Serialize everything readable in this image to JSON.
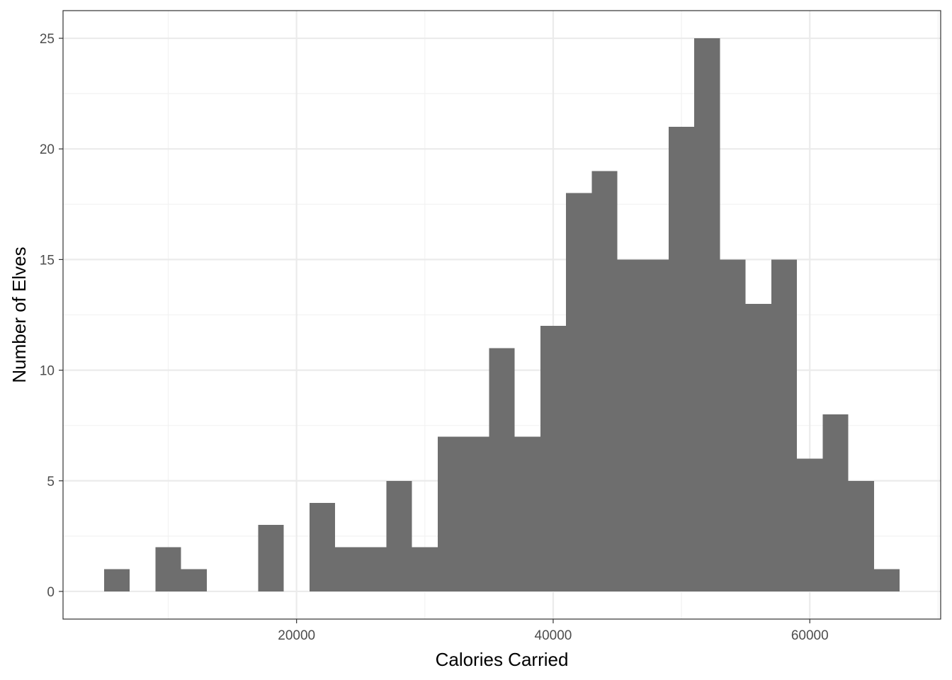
{
  "chart_data": {
    "type": "bar",
    "subtype": "histogram",
    "title": "",
    "xlabel": "Calories Carried",
    "ylabel": "Number of Elves",
    "bin_width": 2000,
    "bins": [
      {
        "x_start": 5000,
        "x_end": 7000,
        "count": 1
      },
      {
        "x_start": 7000,
        "x_end": 9000,
        "count": 0
      },
      {
        "x_start": 9000,
        "x_end": 11000,
        "count": 2
      },
      {
        "x_start": 11000,
        "x_end": 13000,
        "count": 1
      },
      {
        "x_start": 13000,
        "x_end": 15000,
        "count": 0
      },
      {
        "x_start": 15000,
        "x_end": 17000,
        "count": 0
      },
      {
        "x_start": 17000,
        "x_end": 19000,
        "count": 3
      },
      {
        "x_start": 19000,
        "x_end": 21000,
        "count": 0
      },
      {
        "x_start": 21000,
        "x_end": 23000,
        "count": 4
      },
      {
        "x_start": 23000,
        "x_end": 25000,
        "count": 2
      },
      {
        "x_start": 25000,
        "x_end": 27000,
        "count": 2
      },
      {
        "x_start": 27000,
        "x_end": 29000,
        "count": 5
      },
      {
        "x_start": 29000,
        "x_end": 31000,
        "count": 2
      },
      {
        "x_start": 31000,
        "x_end": 33000,
        "count": 7
      },
      {
        "x_start": 33000,
        "x_end": 35000,
        "count": 7
      },
      {
        "x_start": 35000,
        "x_end": 37000,
        "count": 11
      },
      {
        "x_start": 37000,
        "x_end": 39000,
        "count": 7
      },
      {
        "x_start": 39000,
        "x_end": 41000,
        "count": 12
      },
      {
        "x_start": 41000,
        "x_end": 43000,
        "count": 18
      },
      {
        "x_start": 43000,
        "x_end": 45000,
        "count": 19
      },
      {
        "x_start": 45000,
        "x_end": 47000,
        "count": 15
      },
      {
        "x_start": 47000,
        "x_end": 49000,
        "count": 15
      },
      {
        "x_start": 49000,
        "x_end": 51000,
        "count": 21
      },
      {
        "x_start": 51000,
        "x_end": 53000,
        "count": 25
      },
      {
        "x_start": 53000,
        "x_end": 55000,
        "count": 15
      },
      {
        "x_start": 55000,
        "x_end": 57000,
        "count": 13
      },
      {
        "x_start": 57000,
        "x_end": 59000,
        "count": 15
      },
      {
        "x_start": 59000,
        "x_end": 61000,
        "count": 6
      },
      {
        "x_start": 61000,
        "x_end": 63000,
        "count": 8
      },
      {
        "x_start": 63000,
        "x_end": 65000,
        "count": 5
      },
      {
        "x_start": 65000,
        "x_end": 67000,
        "count": 1
      }
    ],
    "xlim": [
      1800,
      70200
    ],
    "ylim": [
      -1.25,
      26.25
    ],
    "x_ticks": [
      20000,
      40000,
      60000
    ],
    "x_tick_labels": [
      "20000",
      "40000",
      "60000"
    ],
    "y_ticks": [
      0,
      5,
      10,
      15,
      20,
      25
    ],
    "y_tick_labels": [
      "0",
      "5",
      "10",
      "15",
      "20",
      "25"
    ],
    "grid": true,
    "legend": "none",
    "colors": {
      "bar_fill": "#6e6e6e",
      "grid_major": "#ebebeb",
      "grid_minor": "#f2f2f2",
      "panel_border": "#333333",
      "tick_text": "#4d4d4d",
      "background": "#ffffff"
    }
  }
}
